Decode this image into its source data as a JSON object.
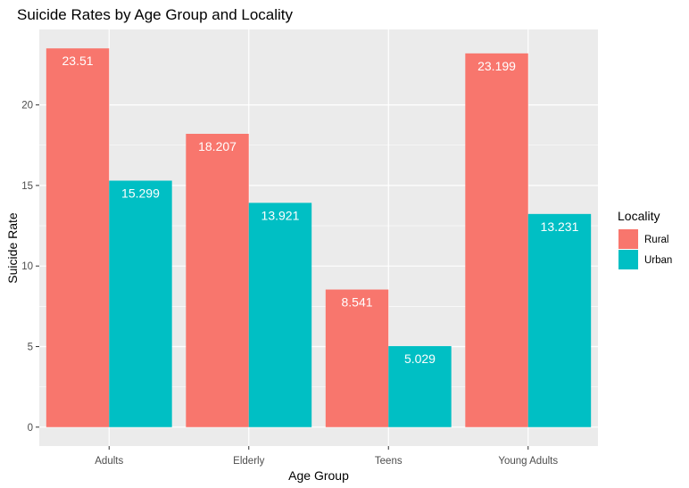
{
  "chart_data": {
    "type": "bar",
    "title": "Suicide Rates by Age Group and Locality",
    "xlabel": "Age Group",
    "ylabel": "Suicide Rate",
    "categories": [
      "Adults",
      "Elderly",
      "Teens",
      "Young Adults"
    ],
    "series": [
      {
        "name": "Rural",
        "color": "#F8766D",
        "values": [
          23.51,
          18.207,
          8.541,
          23.199
        ],
        "labels": [
          "23.51",
          "18.207",
          "8.541",
          "23.199"
        ]
      },
      {
        "name": "Urban",
        "color": "#00BFC4",
        "values": [
          15.299,
          13.921,
          5.029,
          13.231
        ],
        "labels": [
          "15.299",
          "13.921",
          "5.029",
          "13.231"
        ]
      }
    ],
    "ylim": [
      -1.1755,
      24.6855
    ],
    "yticks": [
      0,
      5,
      10,
      15,
      20
    ],
    "ytick_labels": [
      "0",
      "5",
      "10",
      "15",
      "20"
    ],
    "grid": true,
    "background_color": "#EBEBEB",
    "grid_color": "#FFFFFF",
    "legend": {
      "title": "Locality",
      "position": "right"
    }
  }
}
